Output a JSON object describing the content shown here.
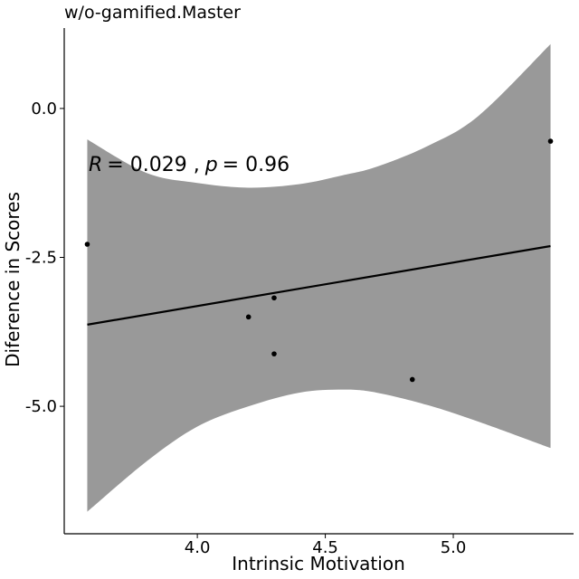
{
  "chart_data": {
    "type": "scatter",
    "title": "w/o-gamified.Master",
    "xlabel": "Intrinsic Motivation",
    "ylabel": "Diference in Scores",
    "xlim": [
      3.48,
      5.47
    ],
    "ylim": [
      -7.14,
      1.35
    ],
    "xticks": [
      4.0,
      4.5,
      5.0
    ],
    "xtick_labels": [
      "4.0",
      "4.5",
      "5.0"
    ],
    "yticks": [
      0.0,
      -2.5,
      -5.0
    ],
    "ytick_labels": [
      "0.0",
      "-2.5",
      "-5.0"
    ],
    "grid": false,
    "points": [
      {
        "x": 3.57,
        "y": -2.28
      },
      {
        "x": 4.2,
        "y": -3.5
      },
      {
        "x": 4.3,
        "y": -3.18
      },
      {
        "x": 4.3,
        "y": -4.12
      },
      {
        "x": 4.84,
        "y": -4.55
      },
      {
        "x": 5.38,
        "y": -0.55
      }
    ],
    "fit_line": {
      "x": [
        3.57,
        5.38
      ],
      "y": [
        -3.63,
        -2.31
      ]
    },
    "confidence_band": {
      "x": [
        3.57,
        3.8,
        4.0,
        4.2,
        4.4,
        4.57,
        4.7,
        4.9,
        5.1,
        5.38
      ],
      "upper": [
        -0.52,
        -1.08,
        -1.25,
        -1.33,
        -1.27,
        -1.12,
        -0.98,
        -0.63,
        -0.12,
        1.08
      ],
      "lower": [
        -6.77,
        -5.93,
        -5.34,
        -5.0,
        -4.77,
        -4.72,
        -4.77,
        -4.98,
        -5.26,
        -5.7
      ]
    },
    "annotation": {
      "R_symbol": "R",
      "R_value": "= 0.029 ,",
      "p_symbol": "p",
      "p_value": "= 0.96"
    },
    "colors": {
      "band": "#999999",
      "line": "#000000",
      "points": "#000000"
    }
  }
}
